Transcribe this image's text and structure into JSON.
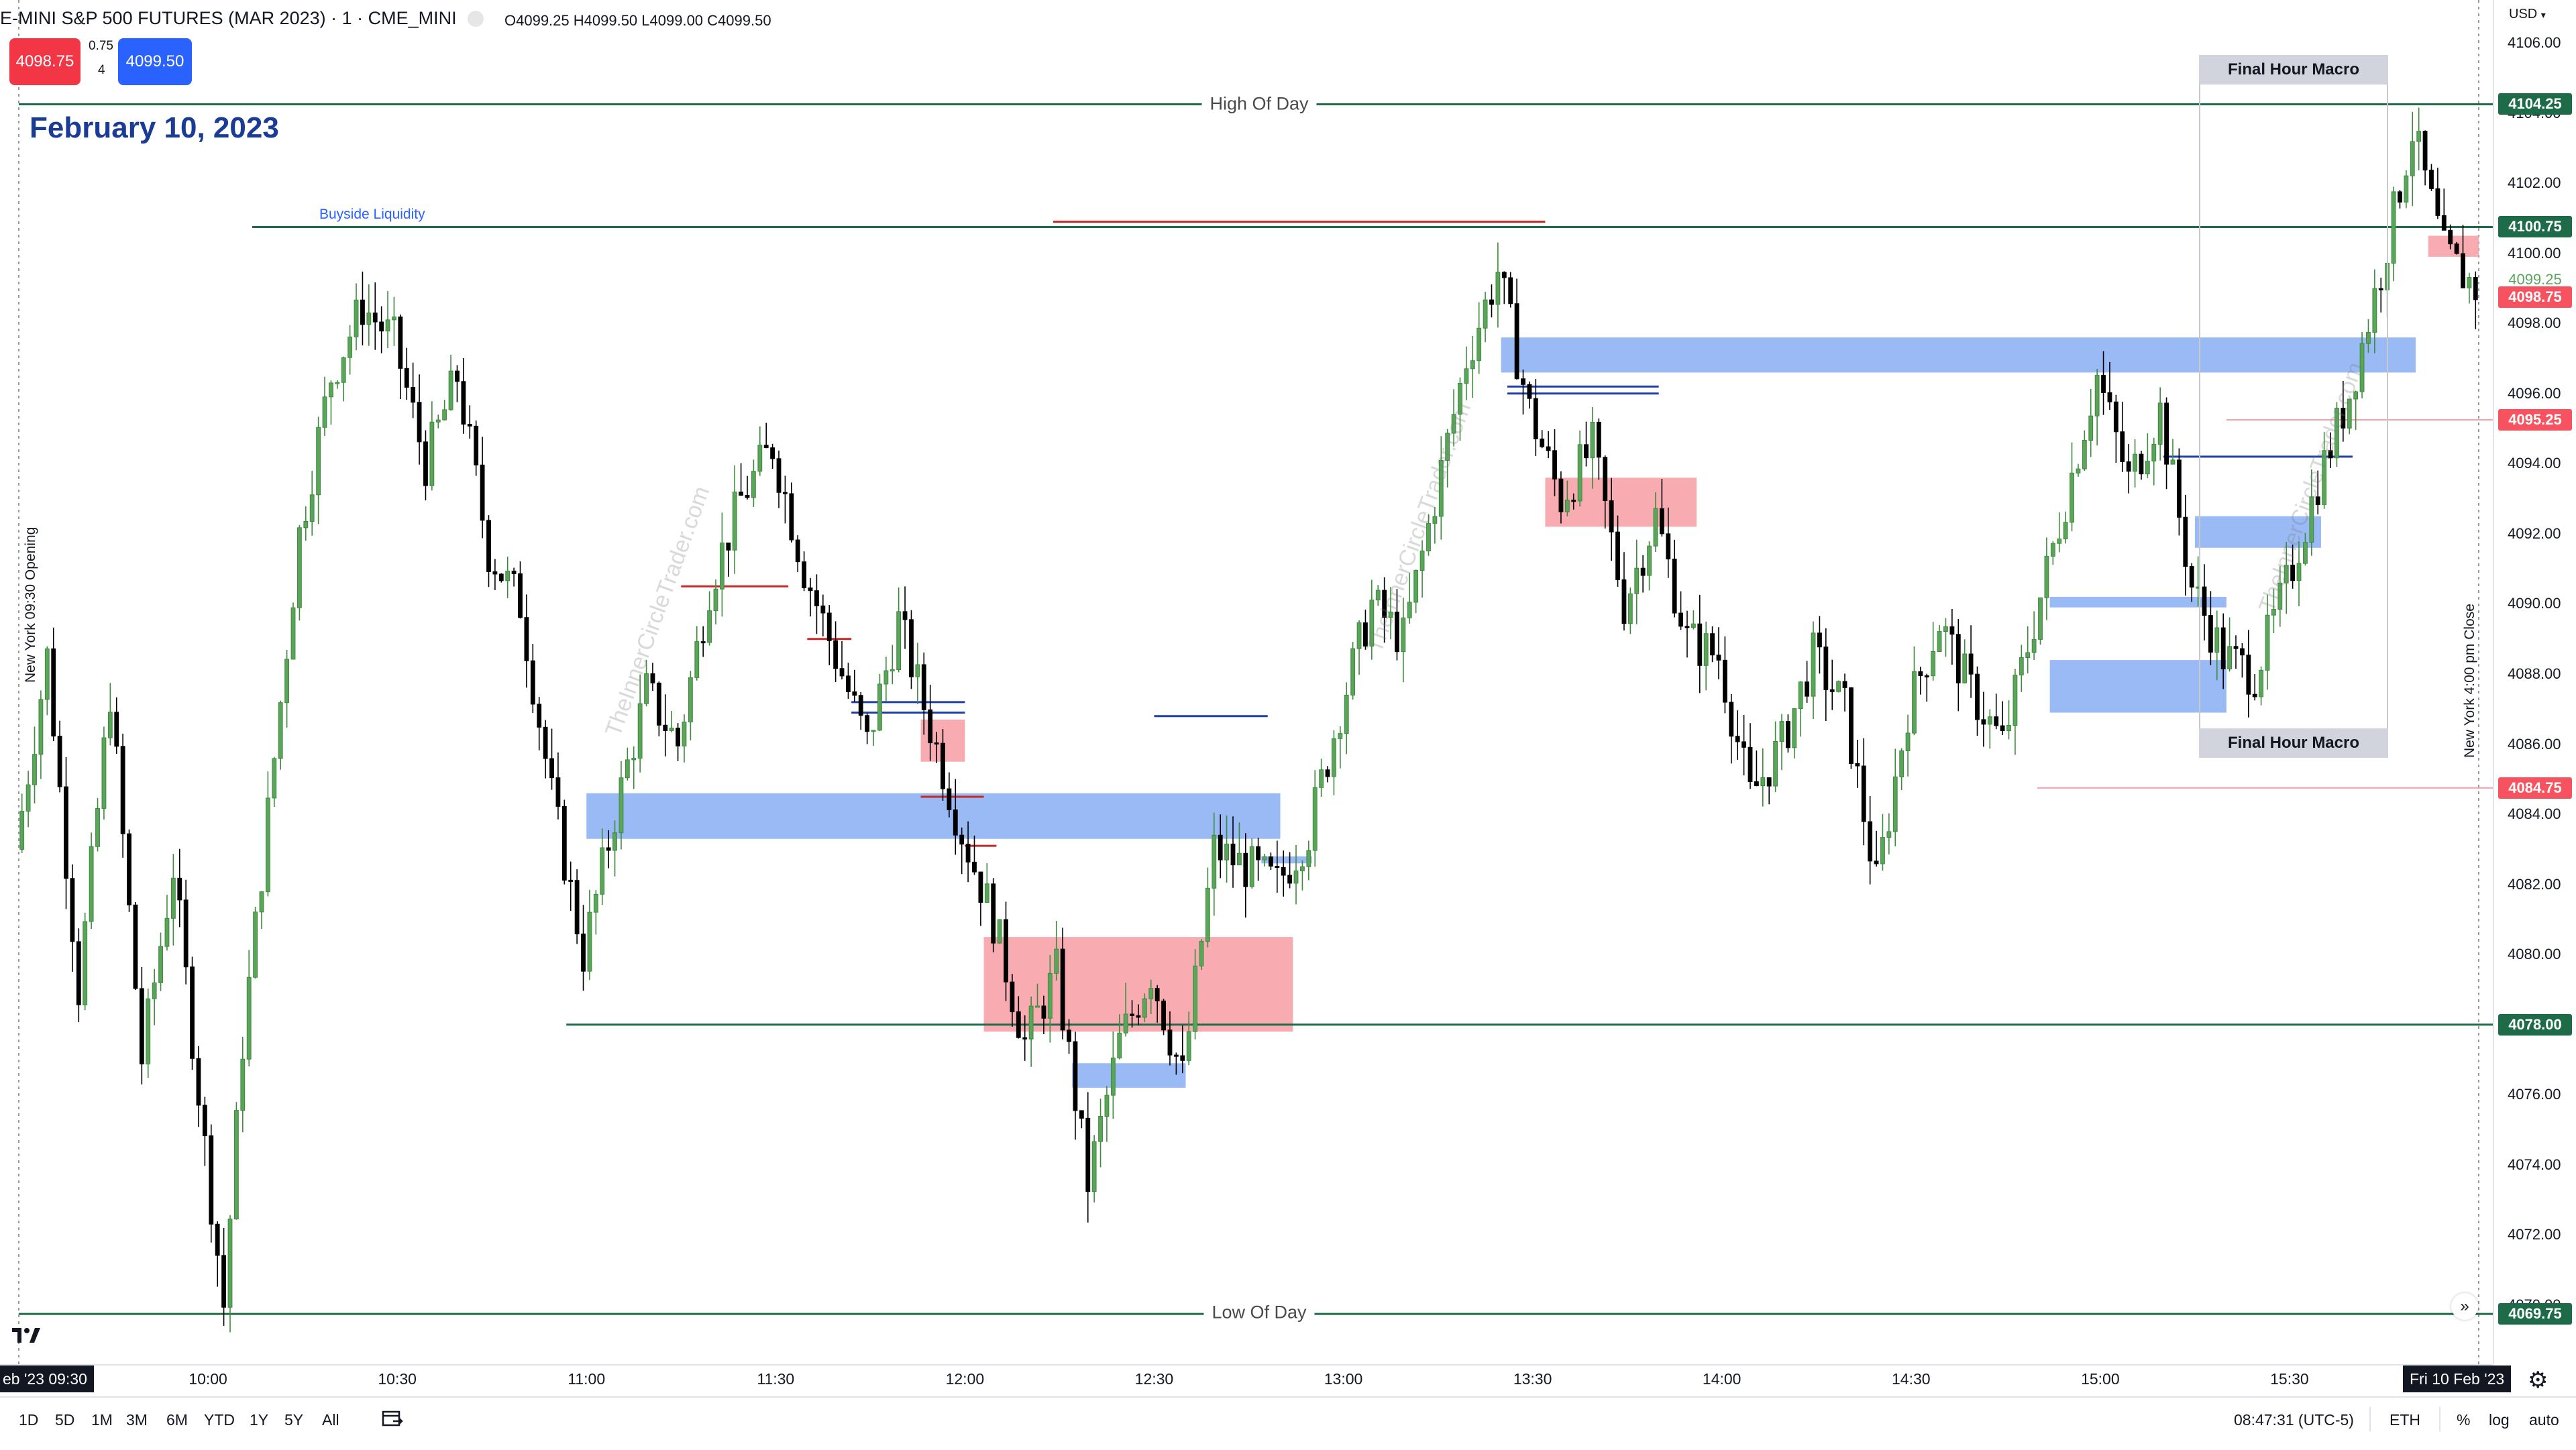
{
  "header": {
    "title": "E-MINI S&P 500 FUTURES (MAR 2023) · 1 · CME_MINI",
    "ohlc": "O4099.25  H4099.50  L4099.00  C4099.50",
    "sell_price": "4098.75",
    "spread": "0.75",
    "qty": "4",
    "buy_price": "4099.50",
    "date_title": "February 10, 2023"
  },
  "colors": {
    "bull": "#5ba55b",
    "bear": "#000000",
    "blue_zone": "#8fb3f5",
    "red_zone": "#f7a2a9",
    "level_line": "#1e6b4a",
    "sell": "#f23645",
    "buy": "#2962ff"
  },
  "annotations": {
    "high_of_day": "High Of Day",
    "low_of_day": "Low Of Day",
    "buyside_liquidity": "Buyside Liquidity",
    "final_hour_macro_top": "Final Hour Macro",
    "final_hour_macro_bottom": "Final Hour Macro",
    "ny_open": "New York 09:30 Opening",
    "ny_close": "New York 4:00 pm Close",
    "watermark": "TheInnerCircleTrader.com"
  },
  "price_axis": {
    "currency": "USD",
    "ticks": [
      "4106.00",
      "4104.00",
      "4102.00",
      "4100.00",
      "4098.00",
      "4096.00",
      "4094.00",
      "4092.00",
      "4090.00",
      "4088.00",
      "4086.00",
      "4084.00",
      "4082.00",
      "4080.00",
      "4078.00",
      "4076.00",
      "4074.00",
      "4072.00",
      "4070.00"
    ],
    "tags": [
      {
        "label": "4104.25",
        "price": 4104.25,
        "color": "#1e6b4a"
      },
      {
        "label": "4100.75",
        "price": 4100.75,
        "color": "#1e6b4a"
      },
      {
        "label": "4099.25",
        "price": 4099.25,
        "color": "#ffffff"
      },
      {
        "label": "4098.75",
        "price": 4098.75,
        "color": "#f7525f"
      },
      {
        "label": "4095.25",
        "price": 4095.25,
        "color": "#f7525f"
      },
      {
        "label": "4084.75",
        "price": 4084.75,
        "color": "#f7525f"
      },
      {
        "label": "4078.00",
        "price": 4078.0,
        "color": "#1e6b4a"
      },
      {
        "label": "4069.75",
        "price": 4069.75,
        "color": "#1e6b4a"
      }
    ]
  },
  "time_axis": {
    "start_tag": "eb '23   09:30",
    "end_tag": "Fri 10 Feb '23",
    "labels": [
      "10:00",
      "10:30",
      "11:00",
      "11:30",
      "12:00",
      "12:30",
      "13:00",
      "13:30",
      "14:00",
      "14:30",
      "15:00",
      "15:30"
    ]
  },
  "toolbar": {
    "ranges": [
      "1D",
      "5D",
      "1M",
      "3M",
      "6M",
      "YTD",
      "1Y",
      "5Y",
      "All"
    ],
    "clock": "08:47:31 (UTC-5)",
    "session": "ETH",
    "percent": "%",
    "log": "log",
    "auto": "auto"
  },
  "chart_data": {
    "type": "candlestick",
    "title": "E-MINI S&P 500 FUTURES (MAR 2023) · 1 · CME_MINI",
    "x_range": [
      "09:30",
      "16:00"
    ],
    "ylim": [
      4069.0,
      4107.0
    ],
    "high_of_day": 4104.25,
    "low_of_day": 4069.75,
    "key_levels": [
      4104.25,
      4100.75,
      4078.0,
      4069.75
    ],
    "close_path": [
      [
        "09:30",
        4083.0
      ],
      [
        "09:35",
        4088.5
      ],
      [
        "09:40",
        4079.0
      ],
      [
        "09:45",
        4087.5
      ],
      [
        "09:50",
        4077.0
      ],
      [
        "09:55",
        4082.5
      ],
      [
        "10:00",
        4074.5
      ],
      [
        "10:03",
        4070.0
      ],
      [
        "10:06",
        4077.5
      ],
      [
        "10:10",
        4084.0
      ],
      [
        "10:15",
        4092.0
      ],
      [
        "10:20",
        4096.5
      ],
      [
        "10:25",
        4098.5
      ],
      [
        "10:30",
        4097.5
      ],
      [
        "10:35",
        4094.0
      ],
      [
        "10:40",
        4096.5
      ],
      [
        "10:45",
        4091.5
      ],
      [
        "10:50",
        4090.0
      ],
      [
        "10:55",
        4084.5
      ],
      [
        "11:00",
        4080.0
      ],
      [
        "11:05",
        4084.0
      ],
      [
        "11:10",
        4087.5
      ],
      [
        "11:15",
        4086.0
      ],
      [
        "11:20",
        4090.5
      ],
      [
        "11:25",
        4093.0
      ],
      [
        "11:30",
        4094.5
      ],
      [
        "11:35",
        4091.0
      ],
      [
        "11:40",
        4088.5
      ],
      [
        "11:45",
        4086.0
      ],
      [
        "11:50",
        4089.5
      ],
      [
        "11:55",
        4086.5
      ],
      [
        "12:00",
        4083.5
      ],
      [
        "12:05",
        4081.0
      ],
      [
        "12:10",
        4077.5
      ],
      [
        "12:15",
        4079.5
      ],
      [
        "12:20",
        4073.5
      ],
      [
        "12:25",
        4077.5
      ],
      [
        "12:30",
        4079.5
      ],
      [
        "12:35",
        4076.5
      ],
      [
        "12:40",
        4083.0
      ],
      [
        "12:45",
        4082.5
      ],
      [
        "12:50",
        4082.0
      ],
      [
        "12:55",
        4083.5
      ],
      [
        "13:00",
        4087.0
      ],
      [
        "13:05",
        4090.0
      ],
      [
        "13:10",
        4089.0
      ],
      [
        "13:15",
        4093.0
      ],
      [
        "13:20",
        4097.0
      ],
      [
        "13:25",
        4099.5
      ],
      [
        "13:30",
        4095.5
      ],
      [
        "13:35",
        4093.0
      ],
      [
        "13:40",
        4094.5
      ],
      [
        "13:45",
        4090.0
      ],
      [
        "13:50",
        4092.5
      ],
      [
        "13:55",
        4089.0
      ],
      [
        "14:00",
        4088.5
      ],
      [
        "14:05",
        4084.5
      ],
      [
        "14:10",
        4086.0
      ],
      [
        "14:15",
        4088.5
      ],
      [
        "14:20",
        4087.0
      ],
      [
        "14:25",
        4082.0
      ],
      [
        "14:30",
        4087.0
      ],
      [
        "14:35",
        4089.5
      ],
      [
        "14:40",
        4087.5
      ],
      [
        "14:45",
        4086.0
      ],
      [
        "14:50",
        4089.5
      ],
      [
        "14:55",
        4093.0
      ],
      [
        "15:00",
        4096.5
      ],
      [
        "15:05",
        4093.5
      ],
      [
        "15:10",
        4095.5
      ],
      [
        "15:15",
        4090.5
      ],
      [
        "15:20",
        4088.5
      ],
      [
        "15:25",
        4088.0
      ],
      [
        "15:30",
        4090.5
      ],
      [
        "15:35",
        4093.5
      ],
      [
        "15:40",
        4096.0
      ],
      [
        "15:45",
        4099.5
      ],
      [
        "15:50",
        4103.5
      ],
      [
        "15:55",
        4100.0
      ],
      [
        "16:00",
        4099.0
      ]
    ],
    "blue_zones": [
      {
        "t0": "11:00",
        "t1": "12:50",
        "p0": 4083.3,
        "p1": 4084.6
      },
      {
        "t0": "13:25",
        "t1": "15:50",
        "p0": 4096.6,
        "p1": 4097.6
      },
      {
        "t0": "15:15",
        "t1": "15:35",
        "p0": 4091.6,
        "p1": 4092.5
      },
      {
        "t0": "14:52",
        "t1": "15:20",
        "p0": 4089.9,
        "p1": 4090.2
      },
      {
        "t0": "14:52",
        "t1": "15:20",
        "p0": 4086.9,
        "p1": 4088.4
      },
      {
        "t0": "12:17",
        "t1": "12:35",
        "p0": 4076.2,
        "p1": 4076.9
      },
      {
        "t0": "12:47",
        "t1": "12:55",
        "p0": 4082.6,
        "p1": 4082.8
      }
    ],
    "red_zones": [
      {
        "t0": "11:53",
        "t1": "12:00",
        "p0": 4085.5,
        "p1": 4086.7
      },
      {
        "t0": "12:03",
        "t1": "12:52",
        "p0": 4077.8,
        "p1": 4080.5
      },
      {
        "t0": "13:32",
        "t1": "13:56",
        "p0": 4092.2,
        "p1": 4093.6
      },
      {
        "t0": "15:52",
        "t1": "16:00",
        "p0": 4099.9,
        "p1": 4100.5
      }
    ]
  }
}
